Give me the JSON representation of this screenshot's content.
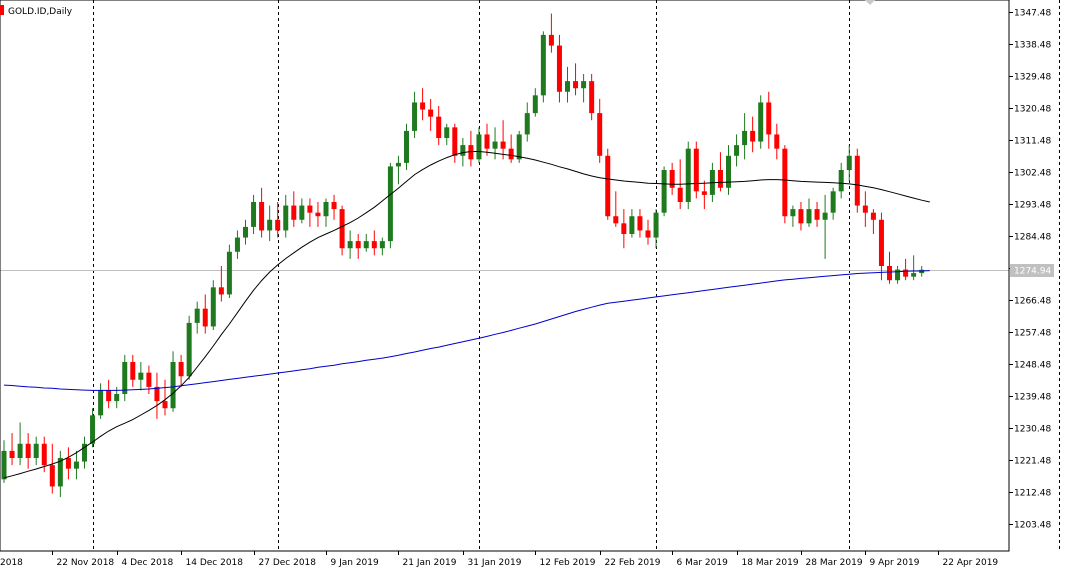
{
  "symbol_title": "GOLD.ID,Daily",
  "current_price_label": "1274.94",
  "colors": {
    "bull": "#1f7a1f",
    "bear": "#ff0000",
    "ma_fast": "#000000",
    "ma_slow": "#0000cc",
    "separator": "#000000",
    "bid_line": "#c0c0c0",
    "price_tag": "#c0c0c0"
  },
  "chart_data": {
    "type": "candlestick",
    "title": "GOLD.ID,Daily",
    "ylim": [
      1195,
      1353
    ],
    "y_ticks": [
      "1203.48",
      "1212.48",
      "1221.48",
      "1230.48",
      "1239.48",
      "1248.48",
      "1257.48",
      "1266.48",
      "1275.48",
      "1284.48",
      "1293.48",
      "1302.48",
      "1311.48",
      "1320.48",
      "1329.48",
      "1338.48",
      "1347.48"
    ],
    "x_tick_labels": [
      "2018",
      "22 Nov 2018",
      "4 Dec 2018",
      "14 Dec 2018",
      "27 Dec 2018",
      "9 Jan 2019",
      "21 Jan 2019",
      "31 Jan 2019",
      "12 Feb 2019",
      "22 Feb 2019",
      "6 Mar 2019",
      "18 Mar 2019",
      "28 Mar 2019",
      "9 Apr 2019",
      "22 Apr 2019"
    ],
    "x_tick_bar_index": [
      0,
      6,
      14,
      22,
      31,
      40,
      49,
      57,
      66,
      74,
      83,
      91,
      99,
      107,
      116
    ],
    "period_separator_bar_index": [
      11,
      34,
      59,
      81,
      105,
      131
    ],
    "last_price": 1274.94,
    "candles": [
      {
        "o": 1216,
        "h": 1227,
        "l": 1215,
        "c": 1224
      },
      {
        "o": 1224,
        "h": 1229,
        "l": 1220,
        "c": 1222
      },
      {
        "o": 1222,
        "h": 1232,
        "l": 1220,
        "c": 1226
      },
      {
        "o": 1226,
        "h": 1229,
        "l": 1219,
        "c": 1222
      },
      {
        "o": 1222,
        "h": 1228,
        "l": 1220,
        "c": 1226
      },
      {
        "o": 1226,
        "h": 1228,
        "l": 1218,
        "c": 1220
      },
      {
        "o": 1220,
        "h": 1226,
        "l": 1212,
        "c": 1214
      },
      {
        "o": 1214,
        "h": 1224,
        "l": 1211,
        "c": 1222
      },
      {
        "o": 1222,
        "h": 1225,
        "l": 1216,
        "c": 1219
      },
      {
        "o": 1219,
        "h": 1224,
        "l": 1216,
        "c": 1221
      },
      {
        "o": 1221,
        "h": 1228,
        "l": 1219,
        "c": 1226
      },
      {
        "o": 1226,
        "h": 1236,
        "l": 1225,
        "c": 1234
      },
      {
        "o": 1234,
        "h": 1243,
        "l": 1233,
        "c": 1241
      },
      {
        "o": 1241,
        "h": 1244,
        "l": 1236,
        "c": 1238
      },
      {
        "o": 1238,
        "h": 1242,
        "l": 1236,
        "c": 1240
      },
      {
        "o": 1240,
        "h": 1251,
        "l": 1238,
        "c": 1249
      },
      {
        "o": 1249,
        "h": 1251,
        "l": 1242,
        "c": 1244
      },
      {
        "o": 1244,
        "h": 1249,
        "l": 1241,
        "c": 1246
      },
      {
        "o": 1246,
        "h": 1248,
        "l": 1240,
        "c": 1242
      },
      {
        "o": 1242,
        "h": 1246,
        "l": 1233,
        "c": 1238
      },
      {
        "o": 1238,
        "h": 1244,
        "l": 1234,
        "c": 1236
      },
      {
        "o": 1236,
        "h": 1252,
        "l": 1235,
        "c": 1249
      },
      {
        "o": 1249,
        "h": 1251,
        "l": 1242,
        "c": 1245
      },
      {
        "o": 1245,
        "h": 1262,
        "l": 1244,
        "c": 1260
      },
      {
        "o": 1260,
        "h": 1266,
        "l": 1257,
        "c": 1264
      },
      {
        "o": 1264,
        "h": 1268,
        "l": 1257,
        "c": 1259
      },
      {
        "o": 1259,
        "h": 1272,
        "l": 1258,
        "c": 1270
      },
      {
        "o": 1270,
        "h": 1276,
        "l": 1266,
        "c": 1268
      },
      {
        "o": 1268,
        "h": 1282,
        "l": 1267,
        "c": 1280
      },
      {
        "o": 1280,
        "h": 1286,
        "l": 1278,
        "c": 1284
      },
      {
        "o": 1284,
        "h": 1289,
        "l": 1282,
        "c": 1287
      },
      {
        "o": 1287,
        "h": 1296,
        "l": 1285,
        "c": 1294
      },
      {
        "o": 1294,
        "h": 1298,
        "l": 1284,
        "c": 1286
      },
      {
        "o": 1286,
        "h": 1293,
        "l": 1283,
        "c": 1289
      },
      {
        "o": 1289,
        "h": 1294,
        "l": 1284,
        "c": 1286
      },
      {
        "o": 1286,
        "h": 1296,
        "l": 1284,
        "c": 1293
      },
      {
        "o": 1293,
        "h": 1297,
        "l": 1287,
        "c": 1289
      },
      {
        "o": 1289,
        "h": 1295,
        "l": 1288,
        "c": 1293
      },
      {
        "o": 1293,
        "h": 1295,
        "l": 1287,
        "c": 1291
      },
      {
        "o": 1291,
        "h": 1294,
        "l": 1287,
        "c": 1290
      },
      {
        "o": 1290,
        "h": 1295,
        "l": 1287,
        "c": 1294
      },
      {
        "o": 1294,
        "h": 1296,
        "l": 1289,
        "c": 1292
      },
      {
        "o": 1292,
        "h": 1293,
        "l": 1279,
        "c": 1281
      },
      {
        "o": 1281,
        "h": 1286,
        "l": 1278,
        "c": 1283
      },
      {
        "o": 1283,
        "h": 1285,
        "l": 1278,
        "c": 1281
      },
      {
        "o": 1281,
        "h": 1285,
        "l": 1280,
        "c": 1283
      },
      {
        "o": 1283,
        "h": 1286,
        "l": 1279,
        "c": 1281
      },
      {
        "o": 1281,
        "h": 1284,
        "l": 1279,
        "c": 1283
      },
      {
        "o": 1283,
        "h": 1305,
        "l": 1281,
        "c": 1304
      },
      {
        "o": 1304,
        "h": 1307,
        "l": 1299,
        "c": 1305
      },
      {
        "o": 1305,
        "h": 1316,
        "l": 1303,
        "c": 1314
      },
      {
        "o": 1314,
        "h": 1325,
        "l": 1312,
        "c": 1322
      },
      {
        "o": 1322,
        "h": 1326,
        "l": 1317,
        "c": 1320
      },
      {
        "o": 1320,
        "h": 1323,
        "l": 1314,
        "c": 1318
      },
      {
        "o": 1318,
        "h": 1321,
        "l": 1310,
        "c": 1312
      },
      {
        "o": 1312,
        "h": 1316,
        "l": 1310,
        "c": 1315
      },
      {
        "o": 1315,
        "h": 1316,
        "l": 1305,
        "c": 1307
      },
      {
        "o": 1307,
        "h": 1312,
        "l": 1304,
        "c": 1310
      },
      {
        "o": 1310,
        "h": 1314,
        "l": 1304,
        "c": 1306
      },
      {
        "o": 1306,
        "h": 1315,
        "l": 1305,
        "c": 1313
      },
      {
        "o": 1313,
        "h": 1316,
        "l": 1307,
        "c": 1309
      },
      {
        "o": 1309,
        "h": 1315,
        "l": 1306,
        "c": 1311
      },
      {
        "o": 1311,
        "h": 1317,
        "l": 1306,
        "c": 1309
      },
      {
        "o": 1309,
        "h": 1313,
        "l": 1305,
        "c": 1306
      },
      {
        "o": 1306,
        "h": 1314,
        "l": 1305,
        "c": 1313
      },
      {
        "o": 1313,
        "h": 1322,
        "l": 1311,
        "c": 1319
      },
      {
        "o": 1319,
        "h": 1326,
        "l": 1318,
        "c": 1324
      },
      {
        "o": 1324,
        "h": 1342,
        "l": 1322,
        "c": 1341
      },
      {
        "o": 1341,
        "h": 1347,
        "l": 1336,
        "c": 1338
      },
      {
        "o": 1338,
        "h": 1341,
        "l": 1322,
        "c": 1325
      },
      {
        "o": 1325,
        "h": 1332,
        "l": 1322,
        "c": 1328
      },
      {
        "o": 1328,
        "h": 1333,
        "l": 1324,
        "c": 1326
      },
      {
        "o": 1326,
        "h": 1330,
        "l": 1322,
        "c": 1328
      },
      {
        "o": 1328,
        "h": 1330,
        "l": 1317,
        "c": 1319
      },
      {
        "o": 1319,
        "h": 1323,
        "l": 1305,
        "c": 1307
      },
      {
        "o": 1307,
        "h": 1309,
        "l": 1289,
        "c": 1290
      },
      {
        "o": 1290,
        "h": 1297,
        "l": 1287,
        "c": 1288
      },
      {
        "o": 1288,
        "h": 1292,
        "l": 1281,
        "c": 1285
      },
      {
        "o": 1285,
        "h": 1292,
        "l": 1284,
        "c": 1290
      },
      {
        "o": 1290,
        "h": 1292,
        "l": 1284,
        "c": 1286
      },
      {
        "o": 1286,
        "h": 1289,
        "l": 1282,
        "c": 1284
      },
      {
        "o": 1284,
        "h": 1292,
        "l": 1281,
        "c": 1291
      },
      {
        "o": 1291,
        "h": 1304,
        "l": 1290,
        "c": 1303
      },
      {
        "o": 1303,
        "h": 1305,
        "l": 1296,
        "c": 1298
      },
      {
        "o": 1298,
        "h": 1306,
        "l": 1292,
        "c": 1294
      },
      {
        "o": 1294,
        "h": 1311,
        "l": 1292,
        "c": 1309
      },
      {
        "o": 1309,
        "h": 1311,
        "l": 1295,
        "c": 1297
      },
      {
        "o": 1297,
        "h": 1300,
        "l": 1292,
        "c": 1296
      },
      {
        "o": 1296,
        "h": 1305,
        "l": 1294,
        "c": 1303
      },
      {
        "o": 1303,
        "h": 1308,
        "l": 1297,
        "c": 1298
      },
      {
        "o": 1298,
        "h": 1310,
        "l": 1296,
        "c": 1307
      },
      {
        "o": 1307,
        "h": 1313,
        "l": 1304,
        "c": 1310
      },
      {
        "o": 1310,
        "h": 1319,
        "l": 1306,
        "c": 1314
      },
      {
        "o": 1314,
        "h": 1318,
        "l": 1308,
        "c": 1311
      },
      {
        "o": 1311,
        "h": 1324,
        "l": 1309,
        "c": 1322
      },
      {
        "o": 1322,
        "h": 1325,
        "l": 1309,
        "c": 1313
      },
      {
        "o": 1313,
        "h": 1316,
        "l": 1306,
        "c": 1309
      },
      {
        "o": 1309,
        "h": 1310,
        "l": 1288,
        "c": 1290
      },
      {
        "o": 1290,
        "h": 1293,
        "l": 1287,
        "c": 1292
      },
      {
        "o": 1292,
        "h": 1294,
        "l": 1286,
        "c": 1288
      },
      {
        "o": 1288,
        "h": 1295,
        "l": 1287,
        "c": 1292
      },
      {
        "o": 1292,
        "h": 1294,
        "l": 1287,
        "c": 1289
      },
      {
        "o": 1289,
        "h": 1296,
        "l": 1278,
        "c": 1291
      },
      {
        "o": 1291,
        "h": 1298,
        "l": 1289,
        "c": 1297
      },
      {
        "o": 1297,
        "h": 1305,
        "l": 1295,
        "c": 1303
      },
      {
        "o": 1303,
        "h": 1310,
        "l": 1300,
        "c": 1307
      },
      {
        "o": 1307,
        "h": 1309,
        "l": 1291,
        "c": 1293
      },
      {
        "o": 1293,
        "h": 1297,
        "l": 1287,
        "c": 1291
      },
      {
        "o": 1291,
        "h": 1292,
        "l": 1285,
        "c": 1289
      },
      {
        "o": 1289,
        "h": 1291,
        "l": 1272,
        "c": 1276
      },
      {
        "o": 1276,
        "h": 1280,
        "l": 1271,
        "c": 1272
      },
      {
        "o": 1272,
        "h": 1276,
        "l": 1271,
        "c": 1275
      },
      {
        "o": 1275,
        "h": 1278,
        "l": 1272,
        "c": 1273
      },
      {
        "o": 1273,
        "h": 1279,
        "l": 1272,
        "c": 1274
      },
      {
        "o": 1274,
        "h": 1276,
        "l": 1273,
        "c": 1274.94
      }
    ],
    "ma_fast": [
      1216.4,
      1217.0,
      1217.6,
      1218.3,
      1218.9,
      1219.6,
      1220.3,
      1221.1,
      1222.2,
      1223.5,
      1225.0,
      1226.5,
      1228.1,
      1229.6,
      1230.8,
      1231.8,
      1232.8,
      1234.1,
      1235.4,
      1236.8,
      1238.4,
      1240.2,
      1242.3,
      1244.7,
      1247.6,
      1250.5,
      1253.5,
      1256.7,
      1259.7,
      1262.9,
      1266.1,
      1269.2,
      1271.9,
      1274.3,
      1276.3,
      1278.1,
      1279.7,
      1281.3,
      1282.7,
      1284.0,
      1285.0,
      1286.0,
      1287.1,
      1288.2,
      1289.5,
      1291.0,
      1292.5,
      1294.3,
      1296.1,
      1297.9,
      1299.8,
      1301.7,
      1303.1,
      1304.4,
      1305.5,
      1306.5,
      1307.3,
      1307.9,
      1308.2,
      1308.2,
      1308.0,
      1307.7,
      1307.4,
      1307.1,
      1306.7,
      1306.3,
      1305.8,
      1305.2,
      1304.6,
      1303.9,
      1303.3,
      1302.6,
      1301.9,
      1301.3,
      1300.8,
      1300.5,
      1300.2,
      1299.9,
      1299.7,
      1299.5,
      1299.3,
      1299.2,
      1299.1,
      1299.0,
      1299.0,
      1299.1,
      1299.2,
      1299.3,
      1299.4,
      1299.5,
      1299.6,
      1299.7,
      1299.8,
      1300.0,
      1300.2,
      1300.3,
      1300.3,
      1300.2,
      1300.0,
      1299.8,
      1299.7,
      1299.6,
      1299.5,
      1299.4,
      1299.3,
      1299.1,
      1298.8,
      1298.4,
      1298.0,
      1297.5,
      1296.9,
      1296.3,
      1295.7,
      1295.1,
      1294.5,
      1294.0
    ],
    "ma_slow": [
      1242.5,
      1242.4,
      1242.2,
      1242.0,
      1241.9,
      1241.7,
      1241.6,
      1241.4,
      1241.3,
      1241.2,
      1241.1,
      1241.0,
      1241.0,
      1241.0,
      1241.0,
      1241.1,
      1241.2,
      1241.3,
      1241.4,
      1241.6,
      1241.8,
      1242.0,
      1242.3,
      1242.6,
      1242.9,
      1243.2,
      1243.5,
      1243.8,
      1244.1,
      1244.4,
      1244.7,
      1245.0,
      1245.3,
      1245.6,
      1245.9,
      1246.2,
      1246.5,
      1246.8,
      1247.1,
      1247.5,
      1247.8,
      1248.1,
      1248.5,
      1248.8,
      1249.1,
      1249.5,
      1249.8,
      1250.1,
      1250.5,
      1250.9,
      1251.4,
      1251.8,
      1252.3,
      1252.8,
      1253.2,
      1253.7,
      1254.2,
      1254.7,
      1255.2,
      1255.7,
      1256.2,
      1256.8,
      1257.3,
      1257.9,
      1258.5,
      1259.1,
      1259.7,
      1260.4,
      1261.1,
      1261.8,
      1262.5,
      1263.2,
      1263.8,
      1264.4,
      1265.0,
      1265.5,
      1265.8,
      1266.1,
      1266.4,
      1266.7,
      1267.0,
      1267.3,
      1267.6,
      1267.9,
      1268.2,
      1268.5,
      1268.8,
      1269.1,
      1269.4,
      1269.7,
      1270.0,
      1270.3,
      1270.6,
      1270.9,
      1271.2,
      1271.5,
      1271.8,
      1272.1,
      1272.3,
      1272.5,
      1272.7,
      1272.9,
      1273.1,
      1273.3,
      1273.5,
      1273.7,
      1273.9,
      1274.0,
      1274.1,
      1274.2,
      1274.3,
      1274.4,
      1274.5,
      1274.6,
      1274.6,
      1274.7
    ]
  }
}
